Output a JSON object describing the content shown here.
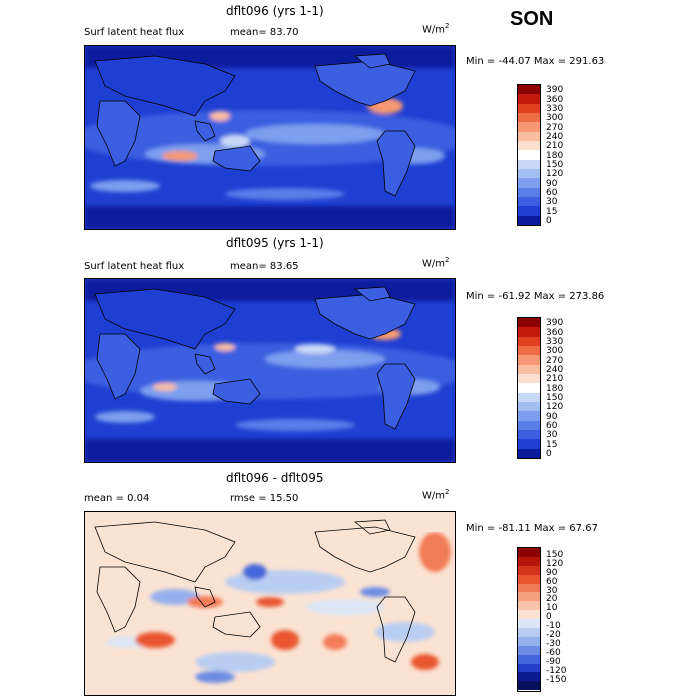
{
  "season": "SON",
  "panels": [
    {
      "title": "dflt096 (yrs 1-1)",
      "field": "Surf latent heat flux",
      "stat1": "mean=  83.70",
      "stat2": "",
      "unit": "W/m",
      "unit_sup": "2",
      "minmax": "Min = -44.07 Max = 291.63",
      "levels": [
        "390",
        "360",
        "330",
        "300",
        "270",
        "240",
        "210",
        "180",
        "150",
        "120",
        "90",
        "60",
        "30",
        "15",
        "0"
      ],
      "colors": [
        "#8b0000",
        "#c41a0e",
        "#e0401f",
        "#ef6d46",
        "#f59873",
        "#f9bea2",
        "#fbe0cf",
        "#ffffff",
        "#c8d8f7",
        "#a3bff2",
        "#7d9fee",
        "#5a7ee8",
        "#3b5fe0",
        "#1f3fd2",
        "#0a1c9c"
      ]
    },
    {
      "title": "dflt095 (yrs 1-1)",
      "field": "Surf latent heat flux",
      "stat1": "mean=  83.65",
      "stat2": "",
      "unit": "W/m",
      "unit_sup": "2",
      "minmax": "Min = -61.92 Max = 273.86",
      "levels": [
        "390",
        "360",
        "330",
        "300",
        "270",
        "240",
        "210",
        "180",
        "150",
        "120",
        "90",
        "60",
        "30",
        "15",
        "0"
      ],
      "colors": [
        "#8b0000",
        "#c41a0e",
        "#e0401f",
        "#ef6d46",
        "#f59873",
        "#f9bea2",
        "#fbe0cf",
        "#ffffff",
        "#c8d8f7",
        "#a3bff2",
        "#7d9fee",
        "#5a7ee8",
        "#3b5fe0",
        "#1f3fd2",
        "#0a1c9c"
      ]
    },
    {
      "title": "dflt096 - dflt095",
      "field": "mean =    0.04",
      "stat1": "rmse =   15.50",
      "stat2": "",
      "unit": "W/m",
      "unit_sup": "2",
      "minmax": "Min = -81.11 Max =  67.67",
      "levels": [
        "150",
        "120",
        "90",
        "60",
        "30",
        "20",
        "10",
        "0",
        "-10",
        "-20",
        "-30",
        "-60",
        "-90",
        "-120",
        "-150"
      ],
      "colors": [
        "#8b0000",
        "#b5160b",
        "#d2331b",
        "#e8552f",
        "#f27b57",
        "#f6a07f",
        "#f9c3a9",
        "#fbe3d3",
        "#dce6f7",
        "#b9cdf2",
        "#94b0ec",
        "#6c8ce4",
        "#4466dc",
        "#2540c8",
        "#0a1a8c",
        "#05105e"
      ]
    }
  ]
}
